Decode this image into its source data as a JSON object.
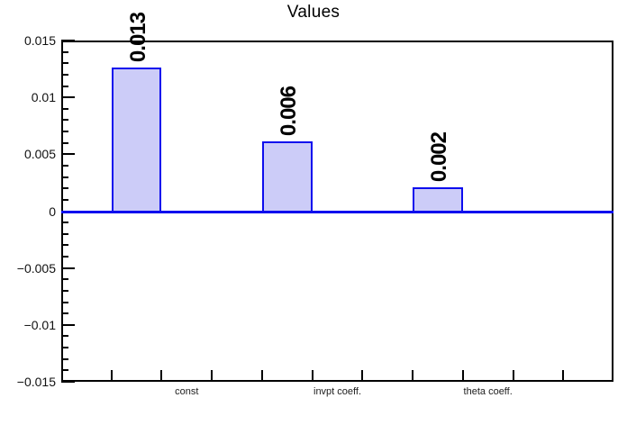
{
  "chart_data": {
    "type": "bar",
    "title": "Values",
    "categories": [
      "const",
      "invpt coeff.",
      "theta coeff."
    ],
    "values": [
      0.0126,
      0.0061,
      0.0021
    ],
    "bar_value_labels": [
      "0.013",
      "0.006",
      "0.002"
    ],
    "xlabel": "",
    "ylabel": "",
    "ylim": [
      -0.015,
      0.015
    ],
    "y_major_values": [
      0.015,
      0.01,
      0.005,
      0,
      -0.005,
      -0.01,
      -0.015
    ],
    "y_tick_labels": [
      "0.015",
      "0.01",
      "0.005",
      "0",
      "−0.005",
      "−0.01",
      "−0.015"
    ],
    "y_minor_step": 0.001,
    "x_bins": 11,
    "bar_bins": [
      1,
      4,
      7
    ],
    "label_bins": [
      2,
      5,
      8
    ],
    "grid": false,
    "legend": false,
    "colors": {
      "bar_fill": "#ccccf8",
      "bar_border": "#0d0dee",
      "zero_line": "#0d0dee",
      "frame": "#000000",
      "background": "#ffffff"
    }
  }
}
